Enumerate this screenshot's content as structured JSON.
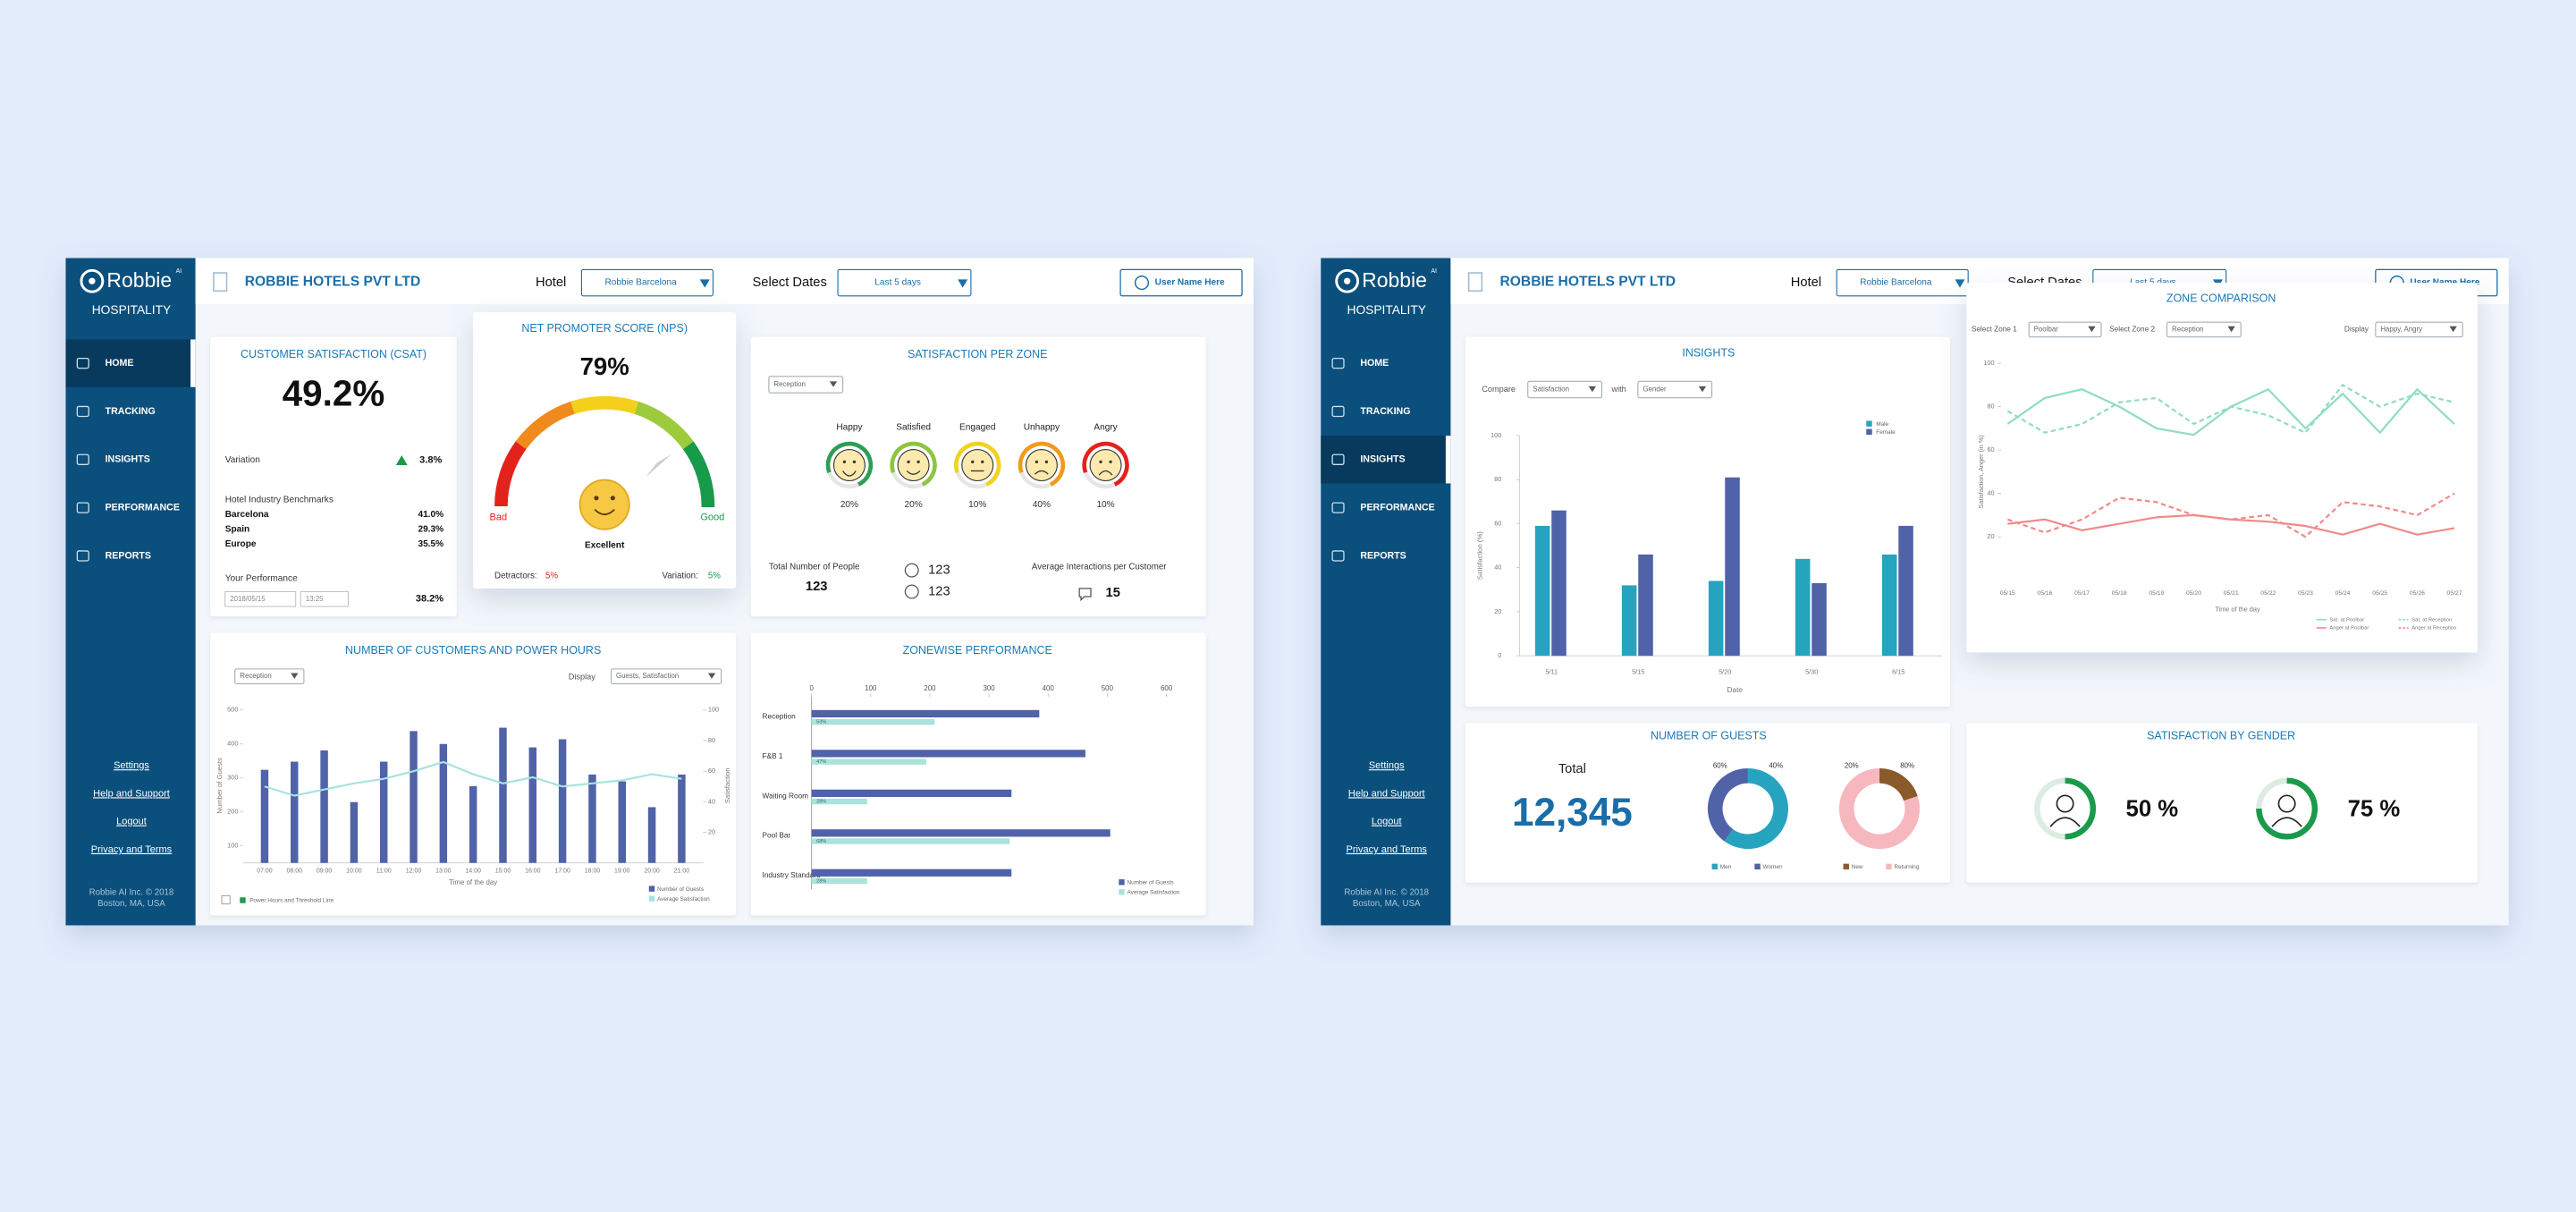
{
  "sidebar": {
    "brand": "Robbie",
    "brand_mark": "AI",
    "product": "HOSPITALITY",
    "menu": [
      "HOME",
      "TRACKING",
      "INSIGHTS",
      "PERFORMANCE",
      "REPORTS"
    ],
    "links": [
      "Settings",
      "Help and Support",
      "Logout",
      "Privacy and Terms"
    ],
    "copyright": [
      "Robbie AI Inc. © 2018",
      "Boston, MA, USA"
    ]
  },
  "header": {
    "company": "ROBBIE HOTELS PVT LTD",
    "hotel_label": "Hotel",
    "hotel": "Robbie Barcelona",
    "dates_label": "Select Dates",
    "dates": "Last 5 days",
    "user": "User Name Here"
  },
  "csat": {
    "title": "CUSTOMER SATISFACTION (CSAT)",
    "value": "49.2%",
    "variation_label": "Variation",
    "variation": "3.8%",
    "benchmarks_title": "Hotel Industry Benchmarks",
    "benchmarks": [
      {
        "name": "Barcelona",
        "value": "41.0%"
      },
      {
        "name": "Spain",
        "value": "29.3%"
      },
      {
        "name": "Europe",
        "value": "35.5%"
      }
    ],
    "performance_label": "Your Performance",
    "date": "2018/05/15",
    "time": "13:25",
    "performance": "38.2%"
  },
  "nps": {
    "title": "NET PROMOTER SCORE (NPS)",
    "score": {
      "value": 79,
      "label": "79%"
    },
    "low": "Bad",
    "high": "Good",
    "rating": "Excellent",
    "detractors_label": "Detractors:",
    "detractors": "5%",
    "variation_label": "Variation:",
    "variation": "5%"
  },
  "zone_satisfaction": {
    "title": "SATISFACTION PER ZONE",
    "zone": "Reception",
    "emotions": [
      {
        "name": "Happy",
        "share": "20%",
        "color": "#2e9e55"
      },
      {
        "name": "Satisfied",
        "share": "20%",
        "color": "#8cc63f"
      },
      {
        "name": "Engaged",
        "share": "10%",
        "color": "#f2d21c"
      },
      {
        "name": "Unhappy",
        "share": "40%",
        "color": "#f39a1e"
      },
      {
        "name": "Angry",
        "share": "10%",
        "color": "#e3221c"
      }
    ],
    "people_label": "Total Number of People",
    "people": "123",
    "male": "123",
    "female": "123",
    "interactions_label": "Average Interactions per Customer",
    "interactions": "15"
  },
  "customers_chart": {
    "type": "bar",
    "title": "NUMBER OF CUSTOMERS AND POWER HOURS",
    "zone": "Reception",
    "display_label": "Display",
    "display": "Guests, Satisfaction",
    "categories": [
      "07:00",
      "08:00",
      "09:00",
      "10:00",
      "11:00",
      "12:00",
      "13:00",
      "14:00",
      "15:00",
      "16:00",
      "17:00",
      "18:00",
      "19:00",
      "20:00",
      "21:00"
    ],
    "series": [
      {
        "name": "Number of Guests",
        "color": "#5062a8",
        "values": [
          324,
          348,
          381,
          229,
          348,
          438,
          400,
          276,
          448,
          390,
          414,
          310,
          290,
          214,
          310
        ]
      },
      {
        "name": "Average Satisfaction",
        "color": "#a8e3dc",
        "type": "line",
        "axis": "y2",
        "values": [
          50,
          44,
          48,
          52,
          55,
          60,
          66,
          58,
          52,
          56,
          50,
          52,
          54,
          58,
          55
        ]
      }
    ],
    "ylim": [
      50,
      500
    ],
    "yticks": [
      100,
      200,
      300,
      400,
      500
    ],
    "y2lim": [
      0,
      100
    ],
    "y2ticks": [
      20,
      40,
      60,
      80,
      100
    ],
    "ylabel": "Number of Guests",
    "y2label": "Satisfaction",
    "xlabel": "Time of the day",
    "threshold_label": "Power Hours and Threshold Line"
  },
  "zonewise_chart": {
    "type": "hbar",
    "title": "ZONEWISE PERFORMANCE",
    "categories": [
      "Reception",
      "F&B 1",
      "Waiting Room",
      "Pool Bar",
      "Industry Standard"
    ],
    "series": [
      {
        "name": "Number of Guests",
        "color": "#5062a8",
        "values": [
          385,
          463,
          338,
          505,
          338
        ]
      },
      {
        "name": "Average Satisfaction",
        "color": "#a8e3dc",
        "values": [
          208,
          194,
          94,
          335,
          94
        ]
      }
    ],
    "bar_notes": [
      "53%",
      "47%",
      "28%",
      "68%",
      "28%"
    ],
    "xlim": [
      0,
      600
    ],
    "xticks": [
      0,
      100,
      200,
      300,
      400,
      500,
      600
    ]
  },
  "insights_chart": {
    "type": "bar",
    "title": "INSIGHTS",
    "compare_label": "Compare",
    "compare": "Satisfaction",
    "with_label": "with",
    "with": "Gender",
    "categories": [
      "5/11",
      "5/15",
      "5/20",
      "5/30",
      "6/15"
    ],
    "series": [
      {
        "name": "Male",
        "color": "#26a4bf",
        "values": [
          59,
          32,
          34,
          44,
          46
        ]
      },
      {
        "name": "Female",
        "color": "#5062a8",
        "values": [
          66,
          46,
          81,
          33,
          59
        ]
      }
    ],
    "ylim": [
      0,
      100
    ],
    "yticks": [
      0,
      20,
      40,
      60,
      80,
      100
    ],
    "ylabel": "Satisfaction (%)",
    "xlabel": "Date"
  },
  "zone_comparison": {
    "type": "line",
    "title": "ZONE COMPARISON",
    "zone1_label": "Select Zone 1",
    "zone1": "Poolbar",
    "zone2_label": "Select Zone 2",
    "zone2": "Reception",
    "display_label": "Display",
    "display": "Happy, Angry",
    "categories": [
      "05/15",
      "05/16",
      "05/17",
      "05/18",
      "05/19",
      "05/20",
      "05/21",
      "05/22",
      "05/23",
      "05/24",
      "05/25",
      "05/26",
      "05/27"
    ],
    "series": [
      {
        "name": "Sat. at Poolbar",
        "color": "#8fdcc4",
        "style": "solid",
        "values": [
          72,
          84,
          88,
          80,
          70,
          67,
          80,
          88,
          70,
          86,
          68,
          88,
          72
        ]
      },
      {
        "name": "Sat. at Reception",
        "color": "#8fdcc4",
        "style": "dashed",
        "values": [
          78,
          68,
          72,
          82,
          84,
          72,
          80,
          76,
          68,
          90,
          80,
          86,
          82
        ]
      },
      {
        "name": "Anger at Poolbar",
        "color": "#f08a8a",
        "style": "solid",
        "values": [
          26,
          28,
          23,
          26,
          29,
          30,
          28,
          27,
          25,
          21,
          26,
          21,
          24
        ]
      },
      {
        "name": "Anger at Reception",
        "color": "#f08a8a",
        "style": "dashed",
        "values": [
          28,
          22,
          28,
          38,
          36,
          30,
          28,
          30,
          20,
          36,
          34,
          30,
          40
        ]
      }
    ],
    "ylim": [
      0,
      100
    ],
    "yticks": [
      20,
      40,
      60,
      80,
      100
    ],
    "ylabel": "Satisfaction, Anger (in %)",
    "xlabel": "Time of the day"
  },
  "guests": {
    "title": "NUMBER OF GUESTS",
    "total_label": "Total",
    "total": "12,345",
    "charts": [
      {
        "type": "donut",
        "categories": [
          "Men",
          "Women"
        ],
        "values": [
          60,
          40
        ],
        "value_labels": [
          "60%",
          "40%"
        ],
        "colors": [
          "#26a4bf",
          "#5062a8"
        ]
      },
      {
        "type": "donut",
        "categories": [
          "New",
          "Returning"
        ],
        "values": [
          20,
          80
        ],
        "value_labels": [
          "20%",
          "80%"
        ],
        "colors": [
          "#8b5a2b",
          "#f6b7bf"
        ]
      }
    ]
  },
  "gender_satisfaction": {
    "title": "SATISFACTION BY GENDER",
    "items": [
      {
        "value": 50,
        "label": "50 %",
        "color": "#1a9a4a"
      },
      {
        "value": 75,
        "label": "75 %",
        "color": "#1a9a4a"
      }
    ]
  }
}
